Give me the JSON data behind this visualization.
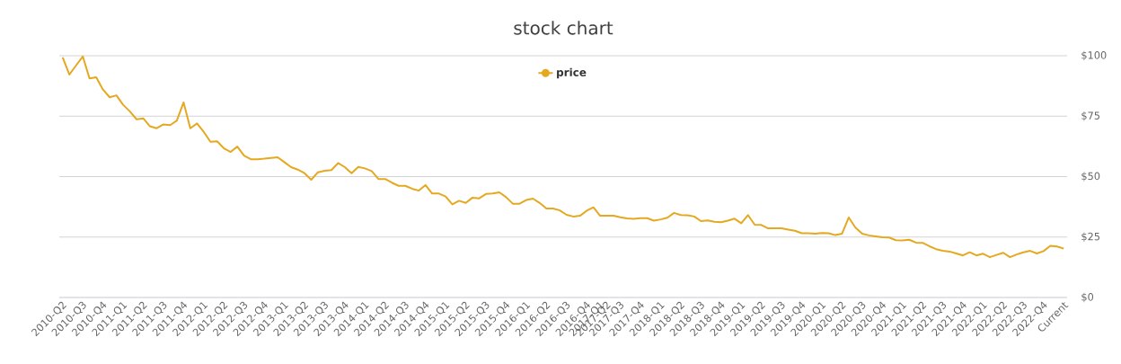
{
  "chart_data": {
    "type": "line",
    "title": "stock chart",
    "categories": [
      "2010-Q2",
      null,
      null,
      "2010-Q3",
      null,
      null,
      "2010-Q4",
      null,
      null,
      "2011-Q1",
      null,
      null,
      "2011-Q2",
      null,
      null,
      "2011-Q3",
      null,
      null,
      "2011-Q4",
      null,
      null,
      "2012-Q1",
      null,
      null,
      "2012-Q2",
      null,
      null,
      "2012-Q3",
      null,
      null,
      "2012-Q4",
      null,
      null,
      "2013-Q1",
      null,
      null,
      "2013-Q2",
      null,
      null,
      "2013-Q3",
      null,
      null,
      "2013-Q4",
      null,
      null,
      "2014-Q1",
      null,
      null,
      "2014-Q2",
      null,
      null,
      "2014-Q3",
      null,
      null,
      "2014-Q4",
      null,
      null,
      "2015-Q1",
      null,
      null,
      "2015-Q2",
      null,
      null,
      "2015-Q3",
      null,
      null,
      "2015-Q4",
      null,
      null,
      "2016-Q1",
      null,
      null,
      "2016-Q2",
      null,
      null,
      "2016-Q3",
      null,
      null,
      "2016-Q4",
      null,
      "2017-Q1",
      "2017-Q2",
      null,
      "2017-Q3",
      null,
      null,
      "2017-Q4",
      null,
      null,
      "2018-Q1",
      null,
      null,
      "2018-Q2",
      null,
      null,
      "2018-Q3",
      null,
      null,
      "2018-Q4",
      null,
      null,
      "2019-Q1",
      null,
      null,
      "2019-Q2",
      null,
      null,
      "2019-Q3",
      null,
      null,
      "2019-Q4",
      null,
      null,
      "2020-Q1",
      null,
      null,
      "2020-Q2",
      null,
      null,
      "2020-Q3",
      null,
      null,
      "2020-Q4",
      null,
      null,
      "2021-Q1",
      null,
      null,
      "2021-Q2",
      null,
      null,
      "2021-Q3",
      null,
      null,
      "2021-Q4",
      null,
      null,
      "2022-Q1",
      null,
      null,
      "2022-Q2",
      null,
      null,
      "2022-Q3",
      null,
      null,
      "2022-Q4",
      null,
      null,
      "Current"
    ],
    "series": [
      {
        "name": "price",
        "color": "#e4a920",
        "values": [
          99.3,
          92.2,
          96,
          99.7,
          90.6,
          91.1,
          86,
          82.8,
          83.6,
          79.7,
          77,
          73.7,
          74.1,
          70.8,
          70,
          71.6,
          71.3,
          73.2,
          80.7,
          70,
          72,
          68.5,
          64.4,
          64.6,
          61.7,
          60.2,
          62.4,
          58.7,
          57.2,
          57.2,
          57.4,
          57.7,
          58,
          56,
          53.9,
          52.9,
          51.4,
          48.7,
          51.8,
          52.4,
          52.7,
          55.6,
          53.9,
          51.4,
          54,
          53.4,
          52.3,
          49,
          49,
          47.5,
          46.2,
          46.2,
          45,
          44.2,
          46.5,
          43,
          43,
          41.8,
          38.5,
          40,
          39.1,
          41.3,
          41,
          42.8,
          43,
          43.5,
          41.5,
          38.8,
          38.8,
          40.3,
          40.9,
          39.1,
          36.8,
          36.8,
          36,
          34.2,
          33.5,
          33.8,
          35.9,
          37.3,
          33.8,
          33.8,
          33.8,
          33.2,
          32.7,
          32.5,
          32.8,
          32.8,
          31.8,
          32.3,
          33,
          35,
          34.1,
          34,
          33.5,
          31.6,
          31.9,
          31.3,
          31.1,
          31.8,
          32.6,
          30.7,
          34.1,
          30.1,
          30,
          28.6,
          28.6,
          28.6,
          28.1,
          27.6,
          26.6,
          26.6,
          26.4,
          26.7,
          26.6,
          25.8,
          26.4,
          33.1,
          28.9,
          26.4,
          25.7,
          25.3,
          24.9,
          24.8,
          23.7,
          23.6,
          23.9,
          22.7,
          22.6,
          21.2,
          20,
          19.3,
          19,
          18.2,
          17.4,
          18.7,
          17.4,
          18.1,
          16.7,
          17.6,
          18.5,
          16.7,
          17.8,
          18.7,
          19.3,
          18.2,
          19.2,
          21.4,
          21.1,
          20.2
        ]
      }
    ],
    "ylim": [
      0,
      100
    ],
    "yticks": [
      {
        "value": 0,
        "label": "$0"
      },
      {
        "value": 25,
        "label": "$25"
      },
      {
        "value": 50,
        "label": "$50"
      },
      {
        "value": 75,
        "label": "$75"
      },
      {
        "value": 100,
        "label": "$100"
      }
    ],
    "grid": "y",
    "legend": "top"
  }
}
